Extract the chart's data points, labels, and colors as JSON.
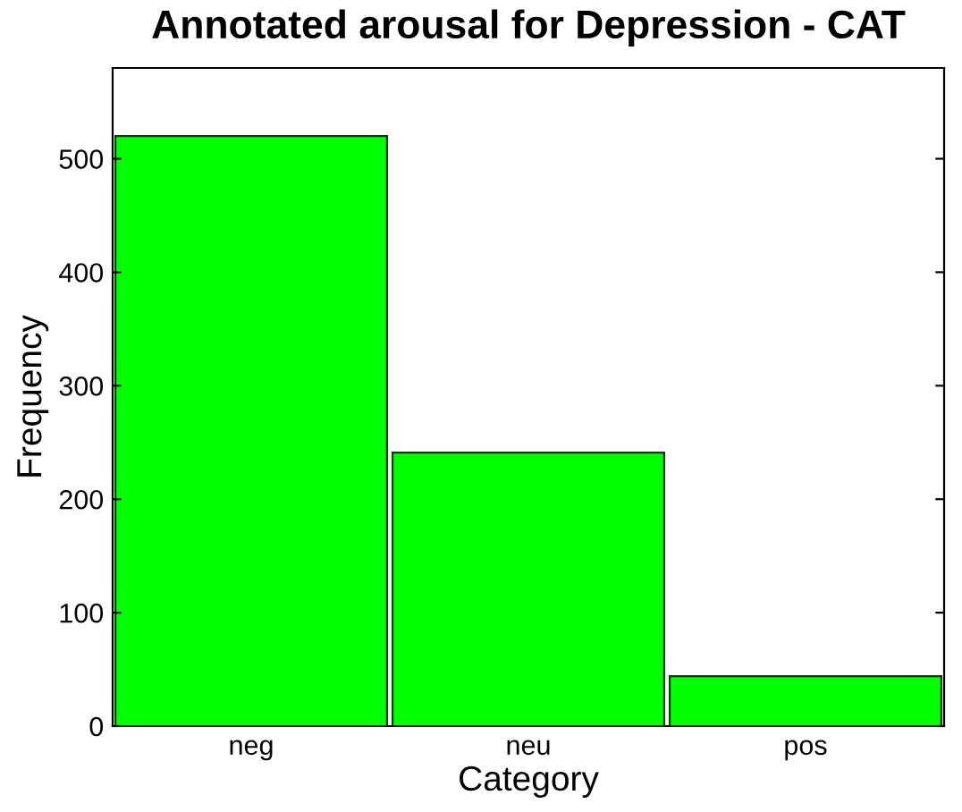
{
  "chart_data": {
    "type": "bar",
    "title": "Annotated arousal for Depression - CAT",
    "xlabel": "Category",
    "ylabel": "Frequency",
    "categories": [
      "neg",
      "neu",
      "pos"
    ],
    "values": [
      520,
      241,
      44
    ],
    "color": "#00ff00",
    "ylim": [
      0,
      580
    ],
    "yticks": [
      0,
      100,
      200,
      300,
      400,
      500
    ],
    "grid": false,
    "legend": false
  }
}
